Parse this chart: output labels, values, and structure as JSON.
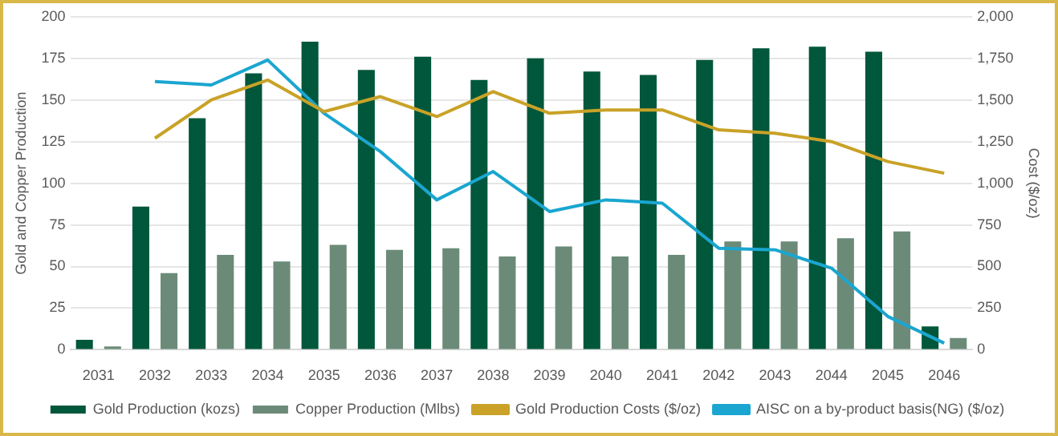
{
  "chart_data": {
    "type": "bar",
    "categories": [
      "2031",
      "2032",
      "2033",
      "2034",
      "2035",
      "2036",
      "2037",
      "2038",
      "2039",
      "2040",
      "2041",
      "2042",
      "2043",
      "2044",
      "2045",
      "2046"
    ],
    "series": [
      {
        "name": "Gold Production (kozs)",
        "color": "#01573b",
        "values": [
          6,
          86,
          139,
          166,
          185,
          168,
          176,
          162,
          175,
          167,
          165,
          174,
          181,
          182,
          179,
          14
        ]
      },
      {
        "name": "Copper Production (Mlbs)",
        "color": "#6b8b78",
        "values": [
          2,
          46,
          57,
          53,
          63,
          60,
          61,
          56,
          62,
          56,
          57,
          65,
          65,
          67,
          71,
          7
        ]
      },
      {
        "name": "Gold Production Costs ($/oz)",
        "type": "line",
        "axis": "y2",
        "color": "#c9a227",
        "values": [
          null,
          1270,
          1500,
          1620,
          1430,
          1520,
          1400,
          1550,
          1420,
          1440,
          1440,
          1320,
          1300,
          1250,
          1130,
          1060
        ]
      },
      {
        "name": "AISC on a by-product basis(NG) ($/oz)",
        "type": "line",
        "axis": "y2",
        "color": "#1aa6d0",
        "values": [
          null,
          1610,
          1590,
          1740,
          1420,
          1190,
          900,
          1070,
          830,
          900,
          880,
          610,
          600,
          490,
          200,
          40
        ]
      }
    ],
    "ylabel": "Gold and Copper Production",
    "y2label": "Cost ($/oz)",
    "ylim": [
      0,
      200
    ],
    "yticks": [
      0,
      25,
      50,
      75,
      100,
      125,
      150,
      175,
      200
    ],
    "y2lim": [
      0,
      2000
    ],
    "y2ticks": [
      0,
      {
        "value": 250,
        "label": "250"
      },
      {
        "value": 500,
        "label": "500"
      },
      {
        "value": 750,
        "label": "750"
      },
      {
        "value": 1000,
        "label": "1,000"
      },
      {
        "value": 1250,
        "label": "1,250"
      },
      {
        "value": 1500,
        "label": "1,500"
      },
      {
        "value": 1750,
        "label": "1,750"
      },
      {
        "value": 2000,
        "label": "2,000"
      }
    ],
    "grid": "y",
    "legend": "bottom",
    "marker": "none",
    "line_style": "solid"
  }
}
